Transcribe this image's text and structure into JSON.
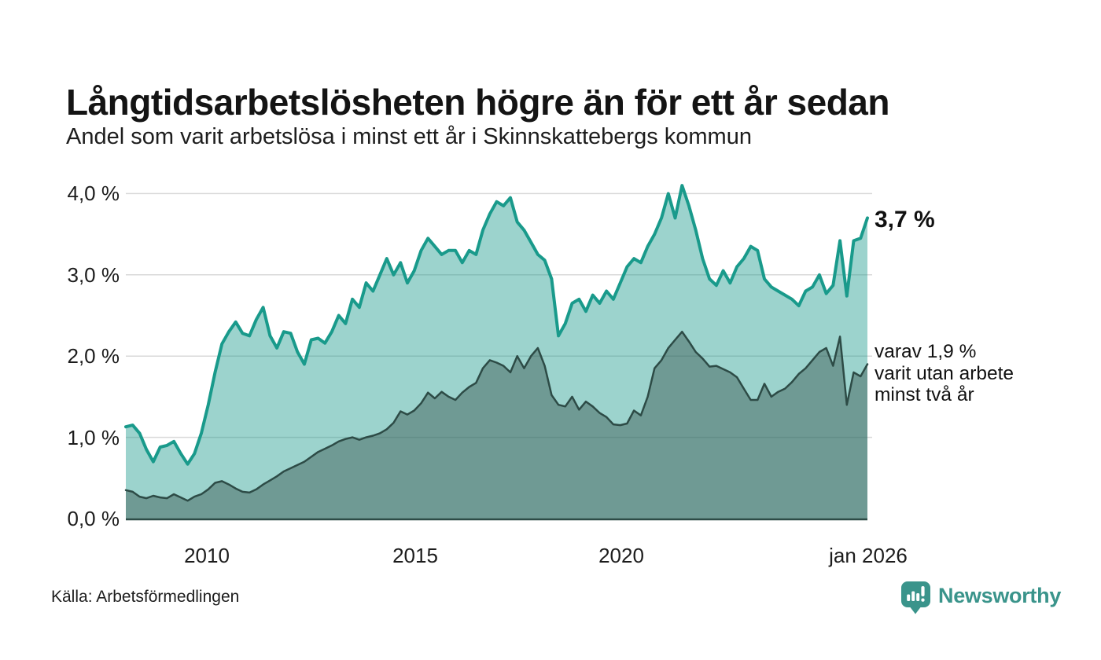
{
  "header": {
    "title": "Långtidsarbetslösheten högre än för ett år sedan",
    "subtitle": "Andel som varit arbetslösa i minst ett år i Skinnskattebergs kommun"
  },
  "chart_data": {
    "type": "area",
    "title": "Långtidsarbetslösheten högre än för ett år sedan",
    "subtitle": "Andel som varit arbetslösa i minst ett år i Skinnskattebergs kommun",
    "x_start_year": 2008,
    "x_step_months": 2,
    "x_end_label": "jan 2026",
    "x_range": [
      2008,
      2026
    ],
    "ylim": [
      0,
      4.3
    ],
    "grid": "horizontal",
    "y_ticks": [
      {
        "value": 4.0,
        "label": "4,0 %"
      },
      {
        "value": 3.0,
        "label": "3,0 %"
      },
      {
        "value": 2.0,
        "label": "2,0 %"
      },
      {
        "value": 1.0,
        "label": "1,0 %"
      },
      {
        "value": 0.0,
        "label": "0,0 %"
      }
    ],
    "x_ticks": [
      {
        "value": 2010,
        "label": "2010"
      },
      {
        "value": 2015,
        "label": "2015"
      },
      {
        "value": 2020,
        "label": "2020"
      },
      {
        "value": 2026,
        "label": "jan 2026"
      }
    ],
    "series": [
      {
        "name": "Arbetslösa minst ett år",
        "line_color": "#199a8b",
        "fill_color": "rgba(25,153,138,0.43)",
        "line_width": 4,
        "last_value": 3.7,
        "values": [
          1.13,
          1.15,
          1.05,
          0.85,
          0.7,
          0.88,
          0.9,
          0.95,
          0.8,
          0.67,
          0.8,
          1.05,
          1.4,
          1.8,
          2.15,
          2.3,
          2.42,
          2.28,
          2.25,
          2.45,
          2.6,
          2.25,
          2.1,
          2.3,
          2.28,
          2.05,
          1.9,
          2.2,
          2.22,
          2.16,
          2.3,
          2.5,
          2.4,
          2.7,
          2.6,
          2.9,
          2.8,
          3.0,
          3.2,
          3.0,
          3.15,
          2.9,
          3.05,
          3.3,
          3.45,
          3.35,
          3.25,
          3.3,
          3.3,
          3.15,
          3.3,
          3.25,
          3.55,
          3.75,
          3.9,
          3.85,
          3.95,
          3.65,
          3.55,
          3.4,
          3.25,
          3.18,
          2.95,
          2.25,
          2.4,
          2.65,
          2.7,
          2.55,
          2.75,
          2.65,
          2.8,
          2.7,
          2.9,
          3.1,
          3.2,
          3.15,
          3.35,
          3.5,
          3.7,
          4.0,
          3.7,
          4.1,
          3.85,
          3.55,
          3.2,
          2.95,
          2.87,
          3.05,
          2.9,
          3.1,
          3.2,
          3.35,
          3.3,
          2.95,
          2.85,
          2.8,
          2.75,
          2.7,
          2.62,
          2.8,
          2.85,
          3.0,
          2.77,
          2.87,
          3.42,
          2.74,
          3.42,
          3.45,
          3.7
        ]
      },
      {
        "name": "varav arbetslösa minst två år",
        "line_color": "#2d4b46",
        "fill_color": "rgba(45,74,69,0.41)",
        "line_width": 2.5,
        "last_value": 1.9,
        "values": [
          0.35,
          0.33,
          0.27,
          0.25,
          0.28,
          0.26,
          0.25,
          0.3,
          0.26,
          0.22,
          0.27,
          0.3,
          0.36,
          0.44,
          0.46,
          0.42,
          0.37,
          0.33,
          0.32,
          0.36,
          0.42,
          0.47,
          0.52,
          0.58,
          0.62,
          0.66,
          0.7,
          0.76,
          0.82,
          0.86,
          0.9,
          0.95,
          0.98,
          1.0,
          0.97,
          1.0,
          1.02,
          1.05,
          1.1,
          1.18,
          1.32,
          1.28,
          1.33,
          1.42,
          1.55,
          1.48,
          1.56,
          1.5,
          1.46,
          1.55,
          1.62,
          1.67,
          1.85,
          1.95,
          1.92,
          1.88,
          1.8,
          2.0,
          1.85,
          2.0,
          2.1,
          1.88,
          1.52,
          1.4,
          1.38,
          1.5,
          1.34,
          1.44,
          1.38,
          1.3,
          1.25,
          1.16,
          1.15,
          1.17,
          1.33,
          1.27,
          1.5,
          1.85,
          1.95,
          2.1,
          2.2,
          2.3,
          2.18,
          2.05,
          1.97,
          1.87,
          1.88,
          1.84,
          1.8,
          1.74,
          1.6,
          1.46,
          1.46,
          1.66,
          1.5,
          1.56,
          1.6,
          1.68,
          1.78,
          1.85,
          1.95,
          2.05,
          2.1,
          1.88,
          2.24,
          1.4,
          1.8,
          1.75,
          1.9
        ]
      }
    ],
    "annotations": [
      {
        "id": "end_value",
        "text": "3,7 %"
      },
      {
        "id": "sub_series",
        "line1": "varav 1,9 %",
        "line2": "varit utan arbete",
        "line3": "minst två år"
      }
    ],
    "grid_color": "#d8d8d8",
    "baseline_color": "#2d4b46"
  },
  "footer": {
    "source": "Källa: Arbetsförmedlingen",
    "brand": "Newsworthy",
    "brand_color": "#3a948b"
  }
}
